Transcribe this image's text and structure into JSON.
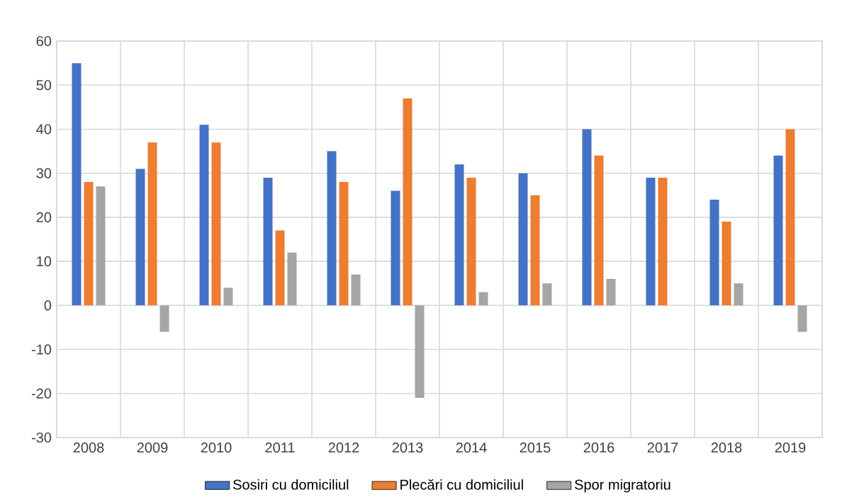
{
  "chart_data": {
    "type": "bar",
    "categories": [
      "2008",
      "2009",
      "2010",
      "2011",
      "2012",
      "2013",
      "2014",
      "2015",
      "2016",
      "2017",
      "2018",
      "2019"
    ],
    "series": [
      {
        "name": "Sosiri cu domiciliul",
        "color": "#4472c4",
        "values": [
          55,
          31,
          41,
          29,
          35,
          26,
          32,
          30,
          40,
          29,
          24,
          34
        ]
      },
      {
        "name": "Plecări cu domiciliul",
        "color": "#ed7d31",
        "values": [
          28,
          37,
          37,
          17,
          28,
          47,
          29,
          25,
          34,
          29,
          19,
          40
        ]
      },
      {
        "name": "Spor migratoriu",
        "color": "#a5a5a5",
        "values": [
          27,
          -6,
          4,
          12,
          7,
          -21,
          3,
          5,
          6,
          0,
          5,
          -6
        ]
      }
    ],
    "ylim": [
      -30,
      60
    ],
    "yticks": [
      -30,
      -20,
      -10,
      0,
      10,
      20,
      30,
      40,
      50,
      60
    ],
    "grid": true,
    "legend": "bottom"
  }
}
